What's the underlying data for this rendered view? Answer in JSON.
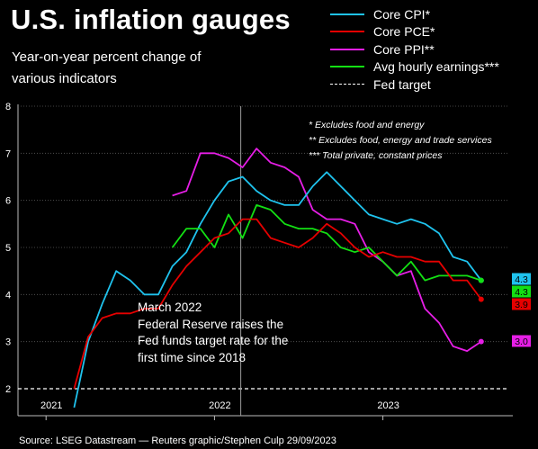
{
  "header": {
    "title": "U.S. inflation gauges",
    "subtitle": "Year-on-year percent change of various indicators"
  },
  "legend": {
    "items": [
      {
        "label": "Core CPI*",
        "color": "#1fc3ee",
        "style": "solid"
      },
      {
        "label": "Core PCE*",
        "color": "#e60000",
        "style": "solid"
      },
      {
        "label": "Core PPI**",
        "color": "#e61ee6",
        "style": "solid"
      },
      {
        "label": "Avg hourly earnings***",
        "color": "#13e013",
        "style": "solid"
      },
      {
        "label": "Fed target",
        "color": "#ffffff",
        "style": "dashed"
      }
    ]
  },
  "footnotes": {
    "line1": "* Excludes food and energy",
    "line2": "** Excludes food, energy and trade services",
    "line3": "*** Total private, constant prices"
  },
  "annotation": {
    "line1": "March 2022",
    "line2": "Federal Reserve raises the",
    "line3": "Fed funds target rate for the",
    "line4": "first time since 2018"
  },
  "source": "Source: LSEG Datastream — Reuters graphic/Stephen Culp 29/09/2023",
  "chart_data": {
    "type": "line",
    "x": [
      "2020-11",
      "2020-12",
      "2021-01",
      "2021-02",
      "2021-03",
      "2021-04",
      "2021-05",
      "2021-06",
      "2021-07",
      "2021-08",
      "2021-09",
      "2021-10",
      "2021-11",
      "2021-12",
      "2022-01",
      "2022-02",
      "2022-03",
      "2022-04",
      "2022-05",
      "2022-06",
      "2022-07",
      "2022-08",
      "2022-09",
      "2022-10",
      "2022-11",
      "2022-12",
      "2023-01",
      "2023-02",
      "2023-03",
      "2023-04",
      "2023-05",
      "2023-06",
      "2023-07",
      "2023-08"
    ],
    "xlim": [
      "2020-11",
      "2023-10"
    ],
    "ylim": [
      2,
      8
    ],
    "yticks": [
      2,
      3,
      4,
      5,
      6,
      7,
      8
    ],
    "xticks": [
      {
        "label": "2021",
        "at": "2021-01",
        "start": "2021-01"
      },
      {
        "label": "2022",
        "at": "2022-01",
        "start": "2022-01"
      },
      {
        "label": "2023",
        "at": "2023-01",
        "start": "2023-01"
      }
    ],
    "xlabel": "",
    "ylabel": "",
    "grid": "horizontal dotted",
    "target": 2,
    "event_date": "2022-03",
    "series": [
      {
        "name": "Core CPI*",
        "color": "#1fc3ee",
        "end_label": "4.3",
        "values": [
          null,
          null,
          null,
          null,
          1.6,
          3.0,
          3.8,
          4.5,
          4.3,
          4.0,
          4.0,
          4.6,
          4.9,
          5.5,
          6.0,
          6.4,
          6.5,
          6.2,
          6.0,
          5.9,
          5.9,
          6.3,
          6.6,
          6.3,
          6.0,
          5.7,
          5.6,
          5.5,
          5.6,
          5.5,
          5.3,
          4.8,
          4.7,
          4.3
        ]
      },
      {
        "name": "Core PCE*",
        "color": "#e60000",
        "end_label": "3.9",
        "values": [
          null,
          null,
          null,
          null,
          2.0,
          3.1,
          3.5,
          3.6,
          3.6,
          3.7,
          3.7,
          4.2,
          4.6,
          4.9,
          5.2,
          5.3,
          5.6,
          5.6,
          5.2,
          5.1,
          5.0,
          5.2,
          5.5,
          5.3,
          5.0,
          4.8,
          4.9,
          4.8,
          4.8,
          4.7,
          4.7,
          4.3,
          4.3,
          3.9
        ]
      },
      {
        "name": "Core PPI**",
        "color": "#e61ee6",
        "end_label": "3.0",
        "values": [
          null,
          null,
          null,
          null,
          null,
          null,
          null,
          null,
          null,
          null,
          null,
          6.1,
          6.2,
          7.0,
          7.0,
          6.9,
          6.7,
          7.1,
          6.8,
          6.7,
          6.5,
          5.8,
          5.6,
          5.6,
          5.5,
          4.9,
          4.7,
          4.4,
          4.5,
          3.7,
          3.4,
          2.9,
          2.8,
          3.0
        ]
      },
      {
        "name": "Avg hourly earnings***",
        "color": "#13e013",
        "end_label": "4.3",
        "values": [
          null,
          null,
          null,
          null,
          null,
          null,
          null,
          null,
          null,
          null,
          null,
          5.0,
          5.4,
          5.4,
          5.0,
          5.7,
          5.2,
          5.9,
          5.8,
          5.5,
          5.4,
          5.4,
          5.3,
          5.0,
          4.9,
          5.0,
          4.7,
          4.4,
          4.7,
          4.3,
          4.4,
          4.4,
          4.4,
          4.3
        ]
      }
    ]
  }
}
